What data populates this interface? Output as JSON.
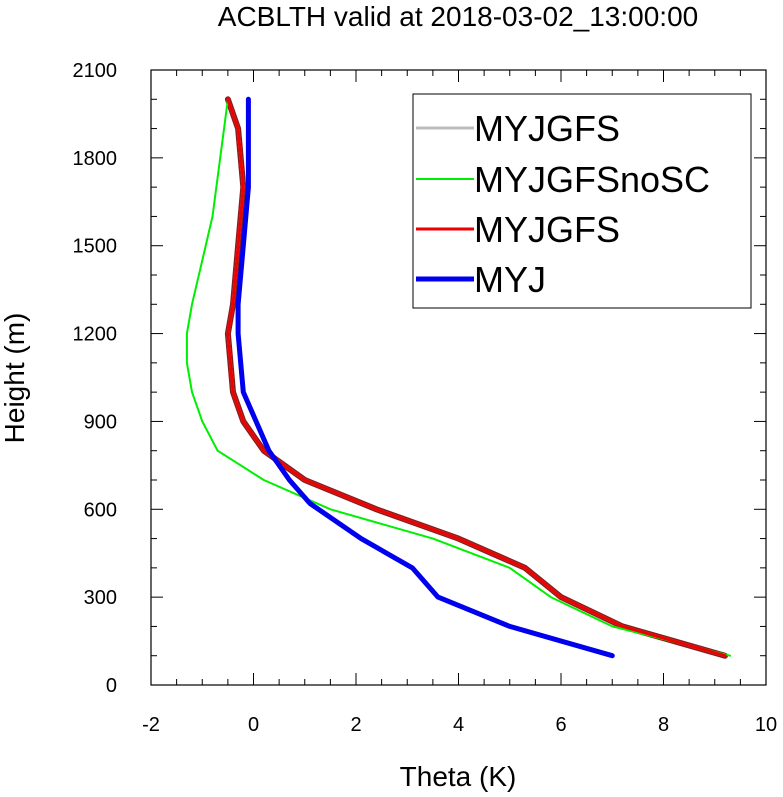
{
  "chart_data": {
    "type": "line",
    "title": "ACBLTH valid at 2018-03-02_13:00:00",
    "xlabel": "Theta (K)",
    "ylabel": "Height (m)",
    "xlim": [
      -2,
      10
    ],
    "ylim": [
      0,
      2100
    ],
    "xticks": [
      -2,
      0,
      2,
      4,
      6,
      8,
      10
    ],
    "yticks": [
      0,
      300,
      600,
      900,
      1200,
      1500,
      1800,
      2100
    ],
    "x_minor_step": 0.5,
    "y_minor_step": 100,
    "grid": false,
    "legend_position": "top-right",
    "series": [
      {
        "name": "MYJGFS",
        "color": "#bdbdbd",
        "outline": "#8b1a1a",
        "width": 3,
        "values": [
          [
            9.2,
            100
          ],
          [
            7.2,
            200
          ],
          [
            6.0,
            300
          ],
          [
            5.3,
            400
          ],
          [
            4.0,
            500
          ],
          [
            2.4,
            600
          ],
          [
            1.0,
            700
          ],
          [
            0.2,
            800
          ],
          [
            -0.2,
            900
          ],
          [
            -0.4,
            1000
          ],
          [
            -0.5,
            1200
          ],
          [
            -0.4,
            1300
          ],
          [
            -0.3,
            1500
          ],
          [
            -0.2,
            1700
          ],
          [
            -0.3,
            1900
          ],
          [
            -0.5,
            2000
          ]
        ]
      },
      {
        "name": "MYJGFSnoSC",
        "color": "#00ee00",
        "width": 2,
        "values": [
          [
            9.3,
            100
          ],
          [
            7.0,
            200
          ],
          [
            5.8,
            300
          ],
          [
            5.0,
            400
          ],
          [
            3.5,
            500
          ],
          [
            1.5,
            600
          ],
          [
            0.2,
            700
          ],
          [
            -0.7,
            800
          ],
          [
            -1.0,
            900
          ],
          [
            -1.2,
            1000
          ],
          [
            -1.3,
            1100
          ],
          [
            -1.3,
            1200
          ],
          [
            -1.2,
            1300
          ],
          [
            -1.0,
            1450
          ],
          [
            -0.8,
            1600
          ],
          [
            -0.5,
            2000
          ]
        ]
      },
      {
        "name": "MYJGFS",
        "color": "#ee0000",
        "width": 3,
        "values": [
          [
            9.2,
            100
          ],
          [
            7.2,
            200
          ],
          [
            6.0,
            300
          ],
          [
            5.3,
            400
          ],
          [
            4.0,
            500
          ],
          [
            2.4,
            600
          ],
          [
            1.0,
            700
          ],
          [
            0.2,
            800
          ],
          [
            -0.2,
            900
          ],
          [
            -0.4,
            1000
          ],
          [
            -0.5,
            1200
          ],
          [
            -0.4,
            1300
          ],
          [
            -0.3,
            1500
          ],
          [
            -0.2,
            1700
          ],
          [
            -0.3,
            1900
          ],
          [
            -0.5,
            2000
          ]
        ]
      },
      {
        "name": "MYJ",
        "color": "#0000ee",
        "width": 5,
        "values": [
          [
            7.0,
            100
          ],
          [
            5.0,
            200
          ],
          [
            3.6,
            300
          ],
          [
            3.1,
            400
          ],
          [
            2.1,
            500
          ],
          [
            1.1,
            620
          ],
          [
            0.7,
            700
          ],
          [
            0.3,
            800
          ],
          [
            -0.2,
            1000
          ],
          [
            -0.3,
            1200
          ],
          [
            -0.3,
            1300
          ],
          [
            -0.2,
            1500
          ],
          [
            -0.1,
            1700
          ],
          [
            -0.1,
            1900
          ],
          [
            -0.1,
            2000
          ]
        ]
      }
    ]
  }
}
